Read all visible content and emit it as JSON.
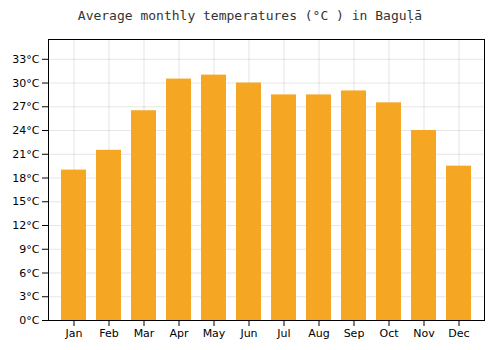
{
  "chart_data": {
    "type": "bar",
    "title": "Average monthly temperatures (°C ) in Baguḷā",
    "categories": [
      "Jan",
      "Feb",
      "Mar",
      "Apr",
      "May",
      "Jun",
      "Jul",
      "Aug",
      "Sep",
      "Oct",
      "Nov",
      "Dec"
    ],
    "values": [
      19.0,
      21.5,
      26.5,
      30.5,
      31.0,
      30.0,
      28.5,
      28.5,
      29.0,
      27.5,
      24.0,
      19.5
    ],
    "color": "#F5A623",
    "ylim": [
      0,
      35.5
    ],
    "yticks": [
      {
        "value": 0,
        "label": "0°C"
      },
      {
        "value": 3,
        "label": "3°C"
      },
      {
        "value": 6,
        "label": "6°C"
      },
      {
        "value": 9,
        "label": "9°C"
      },
      {
        "value": 12,
        "label": "12°C"
      },
      {
        "value": 15,
        "label": "15°C"
      },
      {
        "value": 18,
        "label": "18°C"
      },
      {
        "value": 21,
        "label": "21°C"
      },
      {
        "value": 24,
        "label": "24°C"
      },
      {
        "value": 27,
        "label": "27°C"
      },
      {
        "value": 30,
        "label": "30°C"
      },
      {
        "value": 33,
        "label": "33°C"
      }
    ],
    "grid": true
  }
}
